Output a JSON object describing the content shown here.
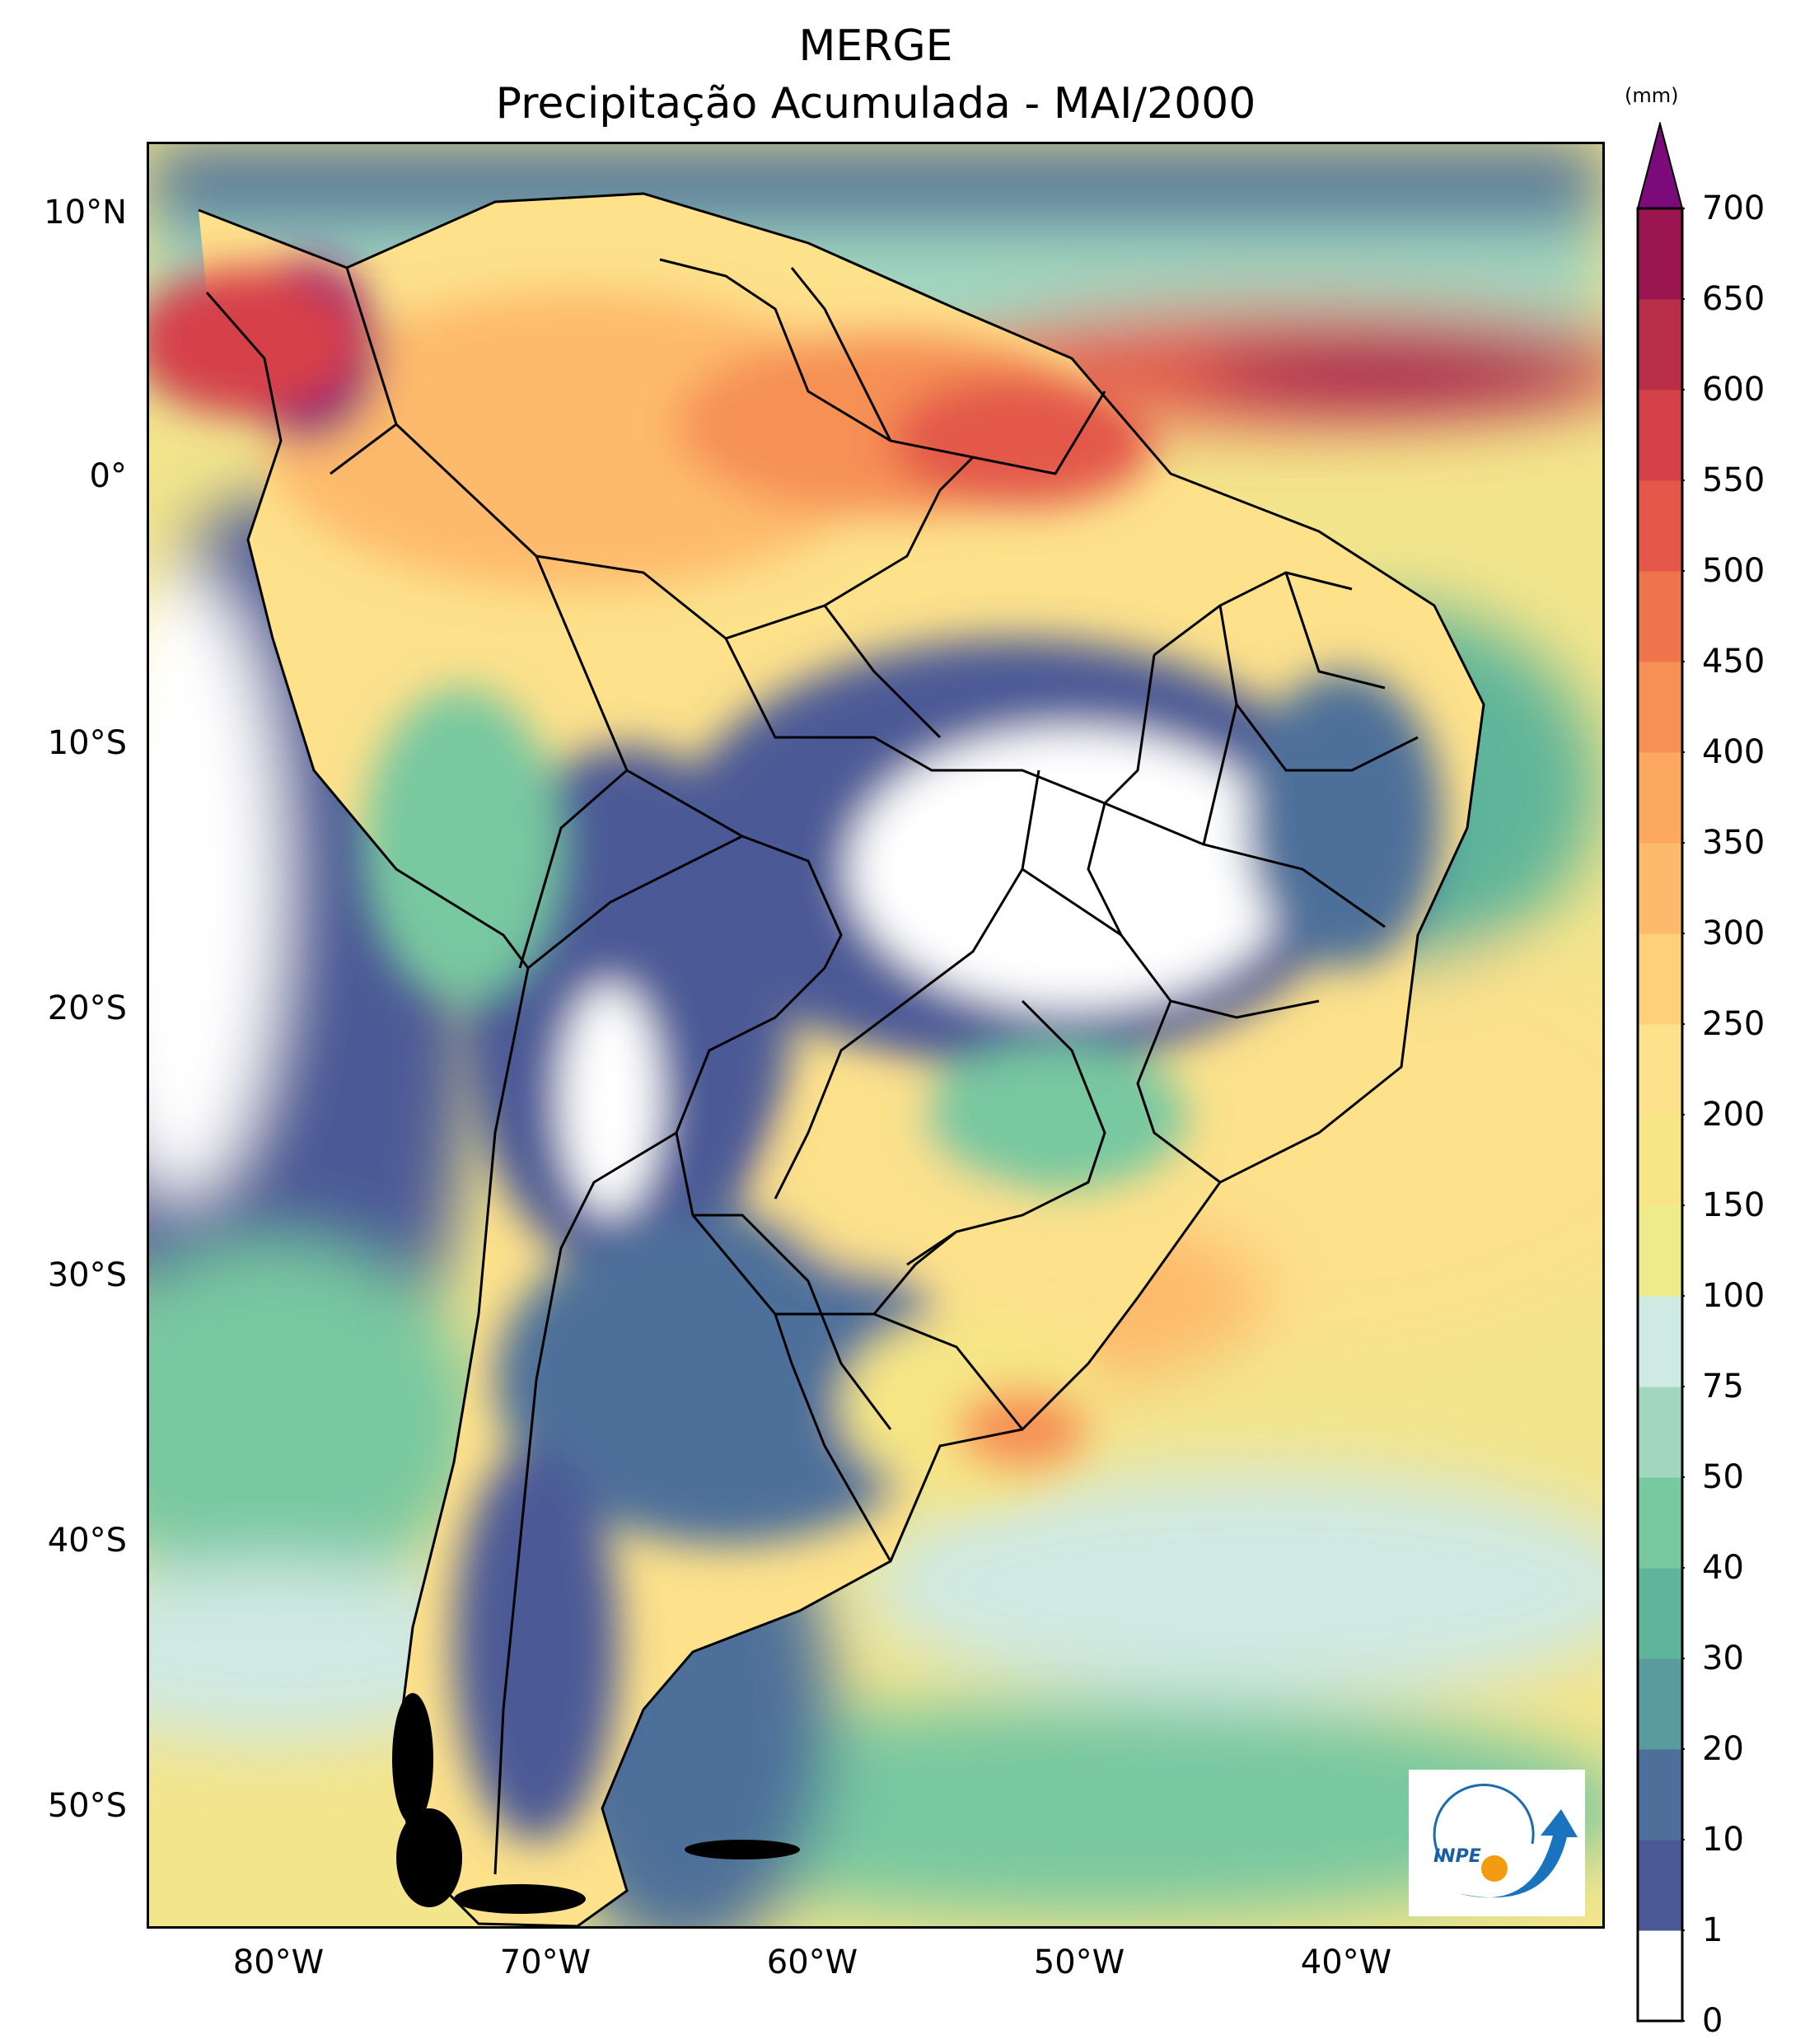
{
  "title": "MERGE",
  "subtitle": "Precipitação Acumulada - MAI/2000",
  "colorbar": {
    "unit": "(mm)",
    "levels": [
      "0",
      "1",
      "10",
      "20",
      "30",
      "40",
      "50",
      "75",
      "100",
      "150",
      "200",
      "250",
      "300",
      "350",
      "400",
      "450",
      "500",
      "550",
      "600",
      "650",
      "700"
    ],
    "colors": [
      "#ffffff",
      "#4b5a96",
      "#4d6f9a",
      "#5a9c9d",
      "#5fb59a",
      "#78c8a0",
      "#a2d7bf",
      "#cfe9e3",
      "#eeec8a",
      "#f6e686",
      "#fde18b",
      "#fdd17a",
      "#fdba6c",
      "#fca861",
      "#f69055",
      "#ee744c",
      "#e35849",
      "#d54149",
      "#b82e49",
      "#9b1651"
    ],
    "extend_color": "#7b0a7b"
  },
  "axes": {
    "lat_labels": [
      "10°N",
      "0°",
      "10°S",
      "20°S",
      "30°S",
      "40°S",
      "50°S"
    ],
    "lon_labels": [
      "80°W",
      "70°W",
      "60°W",
      "50°W",
      "40°W"
    ]
  },
  "logo": {
    "text": "INPE"
  },
  "colors": {
    "sea_high": "#fbe68b",
    "sea_mid": "#a9d9c6",
    "border": "#000000"
  }
}
